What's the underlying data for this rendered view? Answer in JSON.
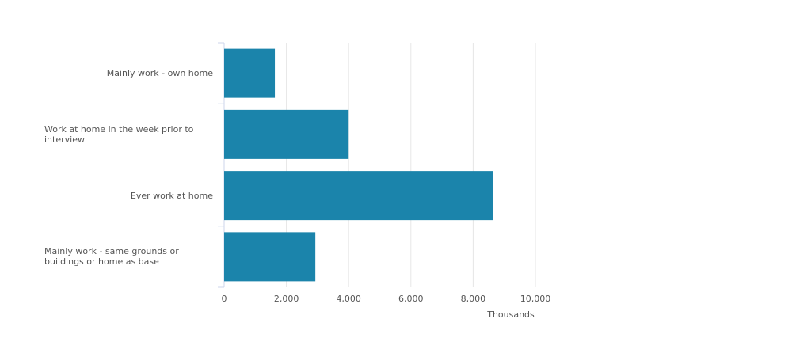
{
  "chart_data": {
    "type": "bar",
    "orientation": "horizontal",
    "categories": [
      "Mainly work - own home",
      "Work at home in the week prior to interview",
      "Ever work at home",
      "Mainly work - same grounds or buildings or home as base"
    ],
    "values": [
      1630,
      4000,
      8650,
      2930
    ],
    "color": "#1b84ab",
    "xlim": [
      0,
      10000
    ],
    "xticks": [
      0,
      {
        "value": 2000,
        "label": "2,000"
      },
      {
        "value": 4000,
        "label": "4,000"
      },
      {
        "value": 6000,
        "label": "6,000"
      },
      {
        "value": 8000,
        "label": "8,000"
      },
      {
        "value": 10000,
        "label": "10,000"
      }
    ],
    "xlabel": "Thousands",
    "grid": true
  }
}
